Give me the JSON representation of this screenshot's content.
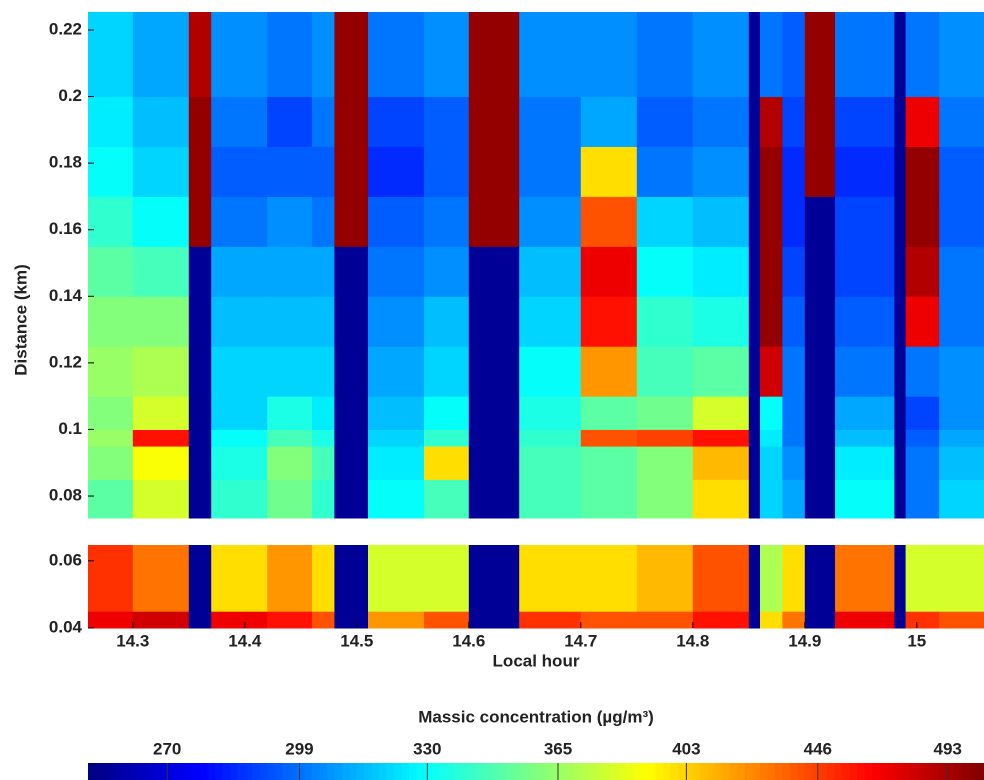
{
  "chart_data": [
    {
      "type": "heatmap",
      "ylabel": "Distance (km)",
      "x": [
        14.26,
        14.3,
        14.35,
        14.37,
        14.42,
        14.46,
        14.48,
        14.51,
        14.56,
        14.6,
        14.645,
        14.7,
        14.75,
        14.8,
        14.85,
        14.86,
        14.88,
        14.9,
        14.927,
        14.98,
        14.99,
        15.02,
        15.06
      ],
      "y": [
        0.0734,
        0.085,
        0.095,
        0.1,
        0.11,
        0.125,
        0.14,
        0.155,
        0.17,
        0.185,
        0.2,
        0.2254
      ],
      "values": [
        [
          350,
          380,
          258,
          340,
          355,
          340,
          258,
          330,
          345,
          258,
          345,
          350,
          360,
          400,
          258,
          320,
          310,
          258,
          330,
          258,
          300,
          320
        ],
        [
          360,
          390,
          258,
          335,
          360,
          345,
          258,
          325,
          400,
          258,
          345,
          350,
          360,
          410,
          258,
          320,
          305,
          258,
          325,
          258,
          300,
          315
        ],
        [
          365,
          460,
          258,
          330,
          345,
          335,
          258,
          320,
          340,
          258,
          340,
          440,
          445,
          460,
          258,
          325,
          300,
          258,
          315,
          258,
          295,
          310
        ],
        [
          360,
          380,
          258,
          320,
          335,
          325,
          258,
          315,
          330,
          258,
          335,
          350,
          355,
          380,
          258,
          330,
          300,
          258,
          310,
          258,
          290,
          305
        ],
        [
          365,
          370,
          258,
          320,
          320,
          320,
          258,
          310,
          320,
          258,
          330,
          420,
          345,
          350,
          258,
          480,
          300,
          258,
          300,
          258,
          300,
          305
        ],
        [
          360,
          360,
          258,
          315,
          315,
          315,
          258,
          305,
          315,
          258,
          320,
          460,
          340,
          335,
          258,
          500,
          295,
          258,
          295,
          258,
          470,
          300
        ],
        [
          350,
          345,
          258,
          310,
          310,
          310,
          258,
          300,
          305,
          258,
          315,
          470,
          330,
          325,
          258,
          500,
          290,
          258,
          290,
          258,
          490,
          300
        ],
        [
          340,
          330,
          500,
          300,
          305,
          300,
          500,
          295,
          300,
          500,
          305,
          440,
          320,
          315,
          258,
          500,
          285,
          258,
          290,
          258,
          500,
          295
        ],
        [
          330,
          320,
          500,
          295,
          295,
          295,
          500,
          285,
          295,
          500,
          300,
          400,
          300,
          305,
          258,
          500,
          285,
          500,
          285,
          258,
          500,
          295
        ],
        [
          325,
          315,
          500,
          300,
          290,
          300,
          500,
          290,
          295,
          500,
          300,
          310,
          295,
          300,
          258,
          490,
          290,
          500,
          290,
          258,
          470,
          300
        ],
        [
          320,
          310,
          490,
          305,
          300,
          305,
          500,
          300,
          305,
          500,
          305,
          305,
          300,
          305,
          258,
          300,
          295,
          500,
          300,
          258,
          300,
          305
        ]
      ],
      "xlim": [
        14.26,
        15.06
      ],
      "ylim": [
        0.0734,
        0.2254
      ],
      "yticks": [
        0.08,
        0.1,
        0.12,
        0.14,
        0.16,
        0.18,
        0.2,
        0.22
      ]
    },
    {
      "type": "heatmap",
      "xlabel": "Local hour",
      "x": [
        14.26,
        14.3,
        14.35,
        14.37,
        14.42,
        14.46,
        14.48,
        14.51,
        14.56,
        14.6,
        14.645,
        14.7,
        14.75,
        14.8,
        14.85,
        14.86,
        14.88,
        14.9,
        14.927,
        14.98,
        14.99,
        15.02,
        15.06
      ],
      "y": [
        0.04,
        0.045,
        0.0647
      ],
      "values": [
        [
          470,
          480,
          258,
          470,
          460,
          440,
          258,
          420,
          440,
          258,
          450,
          440,
          440,
          460,
          258,
          400,
          430,
          258,
          470,
          258,
          450,
          440
        ],
        [
          450,
          430,
          258,
          400,
          420,
          400,
          258,
          380,
          380,
          258,
          400,
          400,
          410,
          440,
          258,
          370,
          400,
          258,
          430,
          258,
          380,
          380
        ]
      ],
      "xlim": [
        14.26,
        15.06
      ],
      "ylim": [
        0.04,
        0.0647
      ],
      "xticks": [
        14.3,
        14.4,
        14.5,
        14.6,
        14.7,
        14.8,
        14.9,
        15
      ],
      "yticks": [
        0.04,
        0.06
      ]
    }
  ],
  "colorbar": {
    "label": "Massic concentration (µg/m³)",
    "colormap": "jet",
    "scale": "log",
    "clim": [
      254,
      507
    ],
    "ticks": [
      270,
      299,
      330,
      365,
      403,
      446,
      493
    ]
  }
}
